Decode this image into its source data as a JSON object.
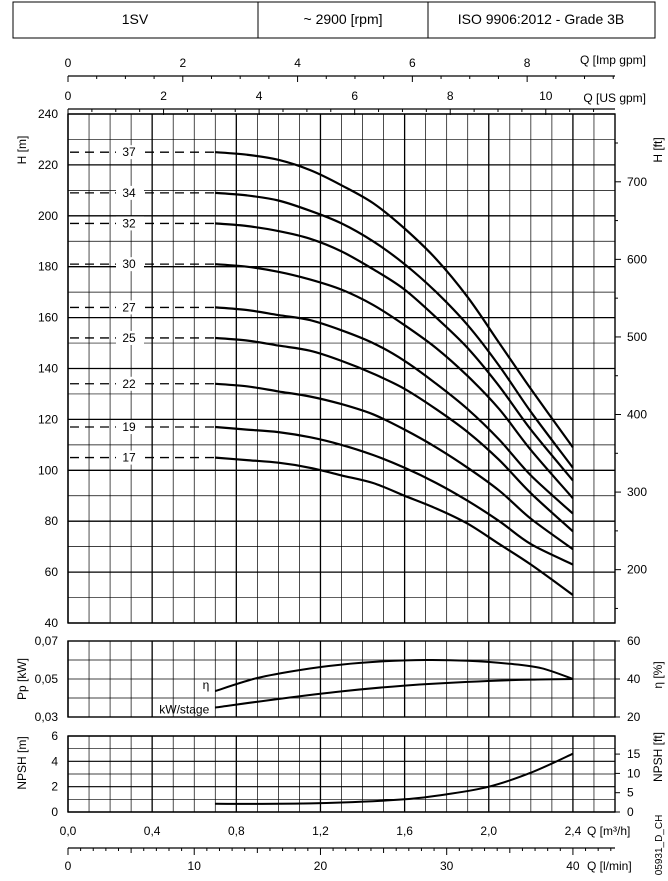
{
  "header": {
    "model": "1SV",
    "speed": "~ 2900 [rpm]",
    "standard": "ISO 9906:2012 - Grade 3B"
  },
  "code": "05931_D_CH",
  "chart_data": [
    {
      "type": "line",
      "name": "head",
      "xlabel": "Q [m³/h]",
      "ylabel": "H [m]",
      "ylabel_right": "H [ft]",
      "xlim": [
        0,
        2.6
      ],
      "ylim": [
        40,
        240
      ],
      "y_ticks": [
        40,
        60,
        80,
        100,
        120,
        140,
        160,
        180,
        200,
        220,
        240
      ],
      "y_right_ticks": [
        200,
        300,
        400,
        500,
        600,
        700
      ],
      "grid": true,
      "series": [
        {
          "name": "37",
          "x": [
            0.7,
            0.85,
            1.0,
            1.15,
            1.3,
            1.45,
            1.6,
            1.75,
            1.9,
            2.05,
            2.2,
            2.4
          ],
          "y": [
            225,
            224,
            222,
            218,
            212,
            205,
            195,
            183,
            168,
            150,
            132,
            109
          ]
        },
        {
          "name": "34",
          "x": [
            0.7,
            0.85,
            1.0,
            1.15,
            1.3,
            1.45,
            1.6,
            1.75,
            1.9,
            2.05,
            2.2,
            2.4
          ],
          "y": [
            209,
            208,
            206,
            202,
            197,
            190,
            181,
            170,
            157,
            141,
            123,
            101
          ]
        },
        {
          "name": "32",
          "x": [
            0.7,
            0.85,
            1.0,
            1.15,
            1.3,
            1.45,
            1.6,
            1.75,
            1.9,
            2.05,
            2.2,
            2.4
          ],
          "y": [
            197,
            196,
            194,
            191,
            186,
            179,
            171,
            160,
            148,
            133,
            116,
            96
          ]
        },
        {
          "name": "30",
          "x": [
            0.7,
            0.85,
            1.0,
            1.15,
            1.3,
            1.45,
            1.6,
            1.75,
            1.9,
            2.05,
            2.2,
            2.4
          ],
          "y": [
            181,
            180,
            178,
            175,
            171,
            165,
            157,
            148,
            137,
            124,
            108,
            89
          ]
        },
        {
          "name": "27",
          "x": [
            0.7,
            0.85,
            1.0,
            1.15,
            1.3,
            1.45,
            1.6,
            1.75,
            1.9,
            2.05,
            2.2,
            2.4
          ],
          "y": [
            164,
            163,
            161,
            159,
            155,
            150,
            143,
            134,
            124,
            112,
            98,
            83
          ]
        },
        {
          "name": "25",
          "x": [
            0.7,
            0.85,
            1.0,
            1.15,
            1.3,
            1.45,
            1.6,
            1.75,
            1.9,
            2.05,
            2.2,
            2.4
          ],
          "y": [
            152,
            151,
            149,
            147,
            143,
            138,
            132,
            124,
            115,
            104,
            91,
            76
          ]
        },
        {
          "name": "22",
          "x": [
            0.7,
            0.85,
            1.0,
            1.15,
            1.3,
            1.45,
            1.6,
            1.75,
            1.9,
            2.05,
            2.2,
            2.4
          ],
          "y": [
            134,
            133,
            131,
            129,
            126,
            122,
            116,
            109,
            101,
            92,
            81,
            69
          ]
        },
        {
          "name": "19",
          "x": [
            0.7,
            0.85,
            1.0,
            1.15,
            1.3,
            1.45,
            1.6,
            1.75,
            1.9,
            2.05,
            2.2,
            2.4
          ],
          "y": [
            117,
            116,
            115,
            113,
            110,
            106,
            101,
            95,
            88,
            80,
            71,
            63
          ]
        },
        {
          "name": "17",
          "x": [
            0.7,
            0.85,
            1.0,
            1.15,
            1.3,
            1.45,
            1.6,
            1.75,
            1.9,
            2.05,
            2.2,
            2.4
          ],
          "y": [
            105,
            104,
            103,
            101,
            98,
            95,
            90,
            85,
            79,
            71,
            63,
            51
          ]
        }
      ]
    },
    {
      "type": "line",
      "name": "power-efficiency",
      "ylabel": "Pp [kW]",
      "ylabel_right": "η [%]",
      "xlim": [
        0,
        2.6
      ],
      "ylim": [
        0.03,
        0.07
      ],
      "y_ticks": [
        "0,03",
        "0,05",
        "0,07"
      ],
      "y_right_ticks": [
        20,
        40,
        60
      ],
      "grid": true,
      "series": [
        {
          "name": "η",
          "x": [
            0.7,
            0.9,
            1.1,
            1.3,
            1.5,
            1.7,
            1.9,
            2.1,
            2.25,
            2.4
          ],
          "y": [
            0.0437,
            0.0505,
            0.0547,
            0.0576,
            0.0593,
            0.06,
            0.0596,
            0.058,
            0.0557,
            0.05
          ]
        },
        {
          "name": "kW/stage",
          "x": [
            0.7,
            1.0,
            1.3,
            1.6,
            1.9,
            2.2,
            2.4
          ],
          "y": [
            0.035,
            0.0395,
            0.0435,
            0.0465,
            0.0485,
            0.0497,
            0.05
          ]
        }
      ]
    },
    {
      "type": "line",
      "name": "npsh",
      "ylabel": "NPSH [m]",
      "ylabel_right": "NPSH [ft]",
      "xlim": [
        0,
        2.6
      ],
      "ylim": [
        0,
        6
      ],
      "y_ticks": [
        0,
        2,
        4,
        6
      ],
      "y_right_ticks": [
        0,
        5,
        10,
        15
      ],
      "grid": true,
      "series": [
        {
          "name": "NPSH",
          "x": [
            0.7,
            1.0,
            1.3,
            1.6,
            1.8,
            2.0,
            2.2,
            2.4
          ],
          "y": [
            0.65,
            0.65,
            0.75,
            1.0,
            1.4,
            2.0,
            3.1,
            4.6
          ]
        }
      ]
    }
  ],
  "axes": {
    "imp_label": "Q [Imp gpm]",
    "imp_ticks": [
      0,
      2,
      4,
      6,
      8
    ],
    "us_label": "Q [US gpm]",
    "us_ticks": [
      0,
      2,
      4,
      6,
      8,
      10
    ],
    "m3h_label": "Q [m³/h]",
    "m3h_ticks": [
      "0,0",
      "0,4",
      "0,8",
      "1,2",
      "1,6",
      "2,0",
      "2,4"
    ],
    "lmin_label": "Q [l/min]",
    "lmin_ticks": [
      0,
      10,
      20,
      30,
      40
    ]
  },
  "colors": {
    "line": "#000000",
    "background": "#ffffff"
  }
}
